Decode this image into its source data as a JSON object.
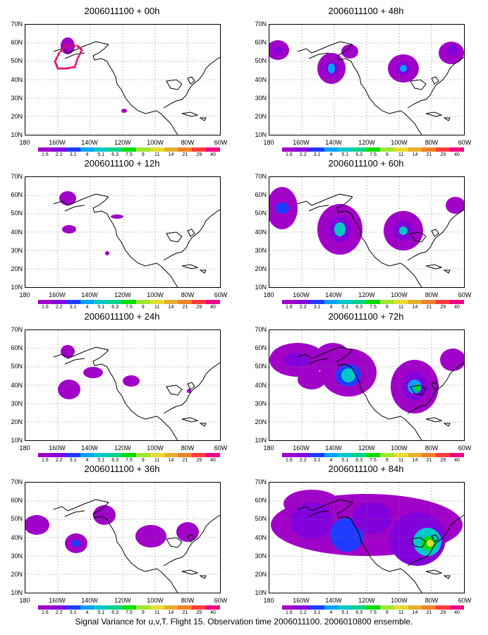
{
  "caption": "Signal Variance for u,v,T. Flight 15. Observation time 2006011100. 2006010800 ensemble.",
  "lat_labels": [
    "70N",
    "60N",
    "50N",
    "40N",
    "30N",
    "20N",
    "10N"
  ],
  "lon_labels": [
    "180",
    "160W",
    "140W",
    "120W",
    "100W",
    "80W",
    "60W"
  ],
  "colorbar_labels": [
    "1.6",
    "2.2",
    "3.1",
    "4",
    "5.1",
    "6.3",
    "7.5",
    "9",
    "11",
    "14",
    "21",
    "29",
    "40"
  ],
  "colorbar_colors": [
    "#a000c8",
    "#8200dc",
    "#1e3cff",
    "#00a0ff",
    "#00c8c8",
    "#00d28c",
    "#00dc00",
    "#a0e632",
    "#e6dc32",
    "#e6af2d",
    "#f08228",
    "#fa3c3c",
    "#f00082"
  ],
  "panels": [
    {
      "title": "2006011100 + 00h"
    },
    {
      "title": "2006011100 + 48h"
    },
    {
      "title": "2006011100 + 12h"
    },
    {
      "title": "2006011100 + 60h"
    },
    {
      "title": "2006011100 + 24h"
    },
    {
      "title": "2006011100 + 72h"
    },
    {
      "title": "2006011100 + 36h"
    },
    {
      "title": "2006011100 + 84h"
    }
  ]
}
